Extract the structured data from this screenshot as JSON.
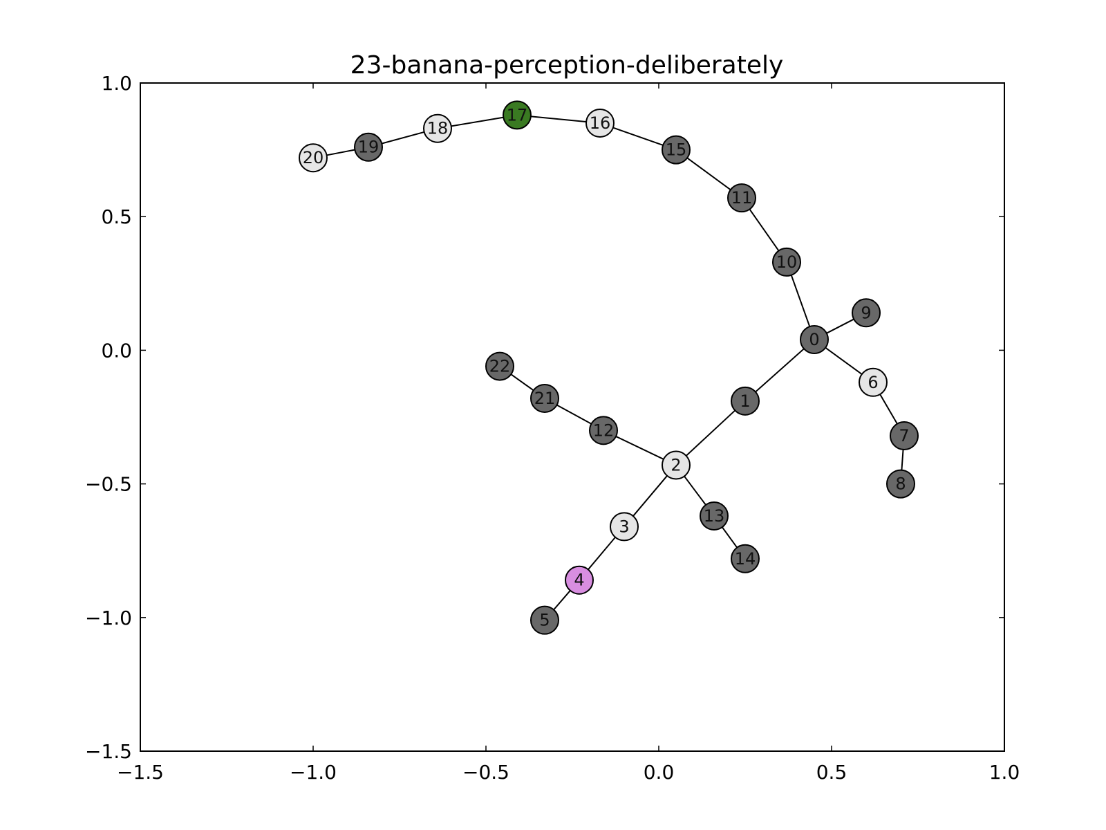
{
  "chart_data": {
    "type": "graph",
    "title": "23-banana-perception-deliberately",
    "xlabel": "",
    "ylabel": "",
    "xlim": [
      -1.5,
      1.0
    ],
    "ylim": [
      -1.5,
      1.0
    ],
    "xticks": [
      {
        "value": -1.5,
        "label": "−1.5"
      },
      {
        "value": -1.0,
        "label": "−1.0"
      },
      {
        "value": -0.5,
        "label": "−0.5"
      },
      {
        "value": 0.0,
        "label": "0.0"
      },
      {
        "value": 0.5,
        "label": "0.5"
      },
      {
        "value": 1.0,
        "label": "1.0"
      }
    ],
    "yticks": [
      {
        "value": -1.5,
        "label": "−1.5"
      },
      {
        "value": -1.0,
        "label": "−1.0"
      },
      {
        "value": -0.5,
        "label": "−0.5"
      },
      {
        "value": 0.0,
        "label": "0.0"
      },
      {
        "value": 0.5,
        "label": "0.5"
      },
      {
        "value": 1.0,
        "label": "1.0"
      }
    ],
    "grid": false,
    "colors": {
      "dark": "#686868",
      "light": "#e6e6e6",
      "green": "#3a7a22",
      "violet": "#d88ee0"
    },
    "nodes": [
      {
        "id": "0",
        "x": 0.45,
        "y": 0.04,
        "color": "#686868"
      },
      {
        "id": "1",
        "x": 0.25,
        "y": -0.19,
        "color": "#686868"
      },
      {
        "id": "2",
        "x": 0.05,
        "y": -0.43,
        "color": "#e6e6e6"
      },
      {
        "id": "3",
        "x": -0.1,
        "y": -0.66,
        "color": "#e6e6e6"
      },
      {
        "id": "4",
        "x": -0.23,
        "y": -0.86,
        "color": "#d88ee0"
      },
      {
        "id": "5",
        "x": -0.33,
        "y": -1.01,
        "color": "#686868"
      },
      {
        "id": "6",
        "x": 0.62,
        "y": -0.12,
        "color": "#e6e6e6"
      },
      {
        "id": "7",
        "x": 0.71,
        "y": -0.32,
        "color": "#686868"
      },
      {
        "id": "8",
        "x": 0.7,
        "y": -0.5,
        "color": "#686868"
      },
      {
        "id": "9",
        "x": 0.6,
        "y": 0.14,
        "color": "#686868"
      },
      {
        "id": "10",
        "x": 0.37,
        "y": 0.33,
        "color": "#686868"
      },
      {
        "id": "11",
        "x": 0.24,
        "y": 0.57,
        "color": "#686868"
      },
      {
        "id": "12",
        "x": -0.16,
        "y": -0.3,
        "color": "#686868"
      },
      {
        "id": "13",
        "x": 0.16,
        "y": -0.62,
        "color": "#686868"
      },
      {
        "id": "14",
        "x": 0.25,
        "y": -0.78,
        "color": "#686868"
      },
      {
        "id": "15",
        "x": 0.05,
        "y": 0.75,
        "color": "#686868"
      },
      {
        "id": "16",
        "x": -0.17,
        "y": 0.85,
        "color": "#e6e6e6"
      },
      {
        "id": "17",
        "x": -0.41,
        "y": 0.88,
        "color": "#3a7a22"
      },
      {
        "id": "18",
        "x": -0.64,
        "y": 0.83,
        "color": "#e6e6e6"
      },
      {
        "id": "19",
        "x": -0.84,
        "y": 0.76,
        "color": "#686868"
      },
      {
        "id": "20",
        "x": -1.0,
        "y": 0.72,
        "color": "#e6e6e6"
      },
      {
        "id": "21",
        "x": -0.33,
        "y": -0.18,
        "color": "#686868"
      },
      {
        "id": "22",
        "x": -0.46,
        "y": -0.06,
        "color": "#686868"
      }
    ],
    "edges": [
      [
        "0",
        "1"
      ],
      [
        "1",
        "2"
      ],
      [
        "2",
        "3"
      ],
      [
        "3",
        "4"
      ],
      [
        "4",
        "5"
      ],
      [
        "0",
        "6"
      ],
      [
        "6",
        "7"
      ],
      [
        "7",
        "8"
      ],
      [
        "0",
        "9"
      ],
      [
        "0",
        "10"
      ],
      [
        "10",
        "11"
      ],
      [
        "11",
        "15"
      ],
      [
        "15",
        "16"
      ],
      [
        "16",
        "17"
      ],
      [
        "17",
        "18"
      ],
      [
        "18",
        "19"
      ],
      [
        "19",
        "20"
      ],
      [
        "2",
        "12"
      ],
      [
        "12",
        "21"
      ],
      [
        "21",
        "22"
      ],
      [
        "2",
        "13"
      ],
      [
        "13",
        "14"
      ]
    ]
  }
}
